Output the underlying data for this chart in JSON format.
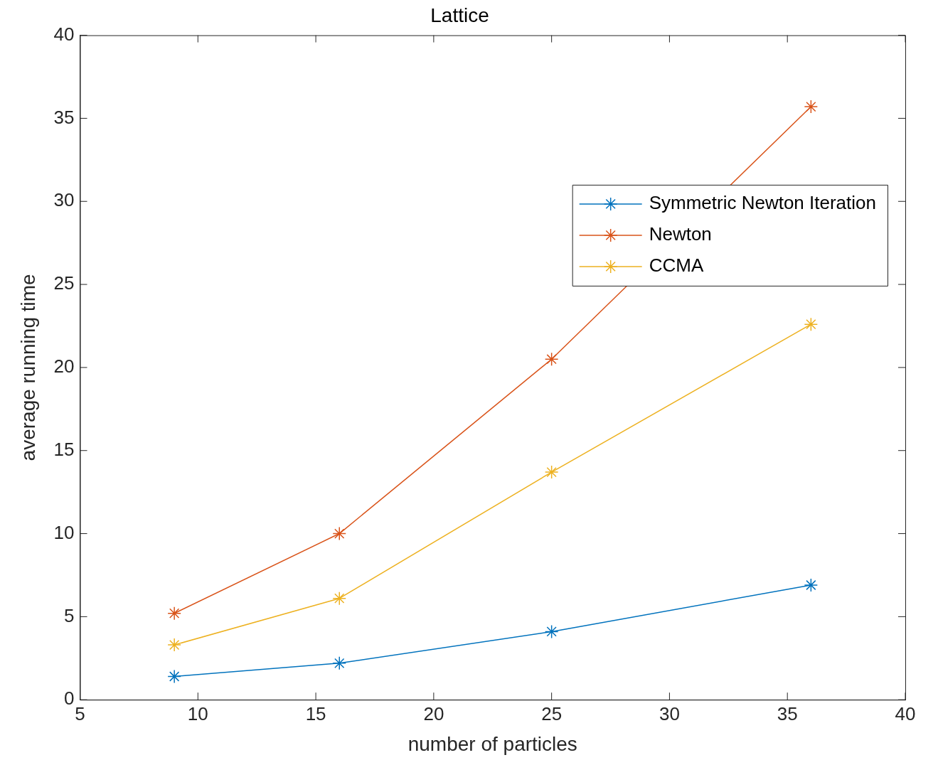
{
  "chart_data": {
    "type": "line",
    "title": "Lattice",
    "xlabel": "number of particles",
    "ylabel": "average running time",
    "x": [
      9,
      16,
      25,
      36
    ],
    "series": [
      {
        "name": "Symmetric Newton Iteration",
        "color": "#0072bd",
        "values": [
          1.4,
          2.2,
          4.1,
          6.9
        ]
      },
      {
        "name": "Newton",
        "color": "#d95319",
        "values": [
          5.2,
          10.0,
          20.5,
          35.7
        ]
      },
      {
        "name": "CCMA",
        "color": "#edb120",
        "values": [
          3.3,
          6.1,
          13.7,
          22.6
        ]
      }
    ],
    "xlim": [
      5,
      40
    ],
    "xticks": [
      5,
      10,
      15,
      20,
      25,
      30,
      35,
      40
    ],
    "ylim": [
      0,
      40
    ],
    "yticks": [
      0,
      5,
      10,
      15,
      20,
      25,
      30,
      35,
      40
    ],
    "grid": false,
    "legend": "top right",
    "marker": "cross",
    "line_style": "solid"
  }
}
